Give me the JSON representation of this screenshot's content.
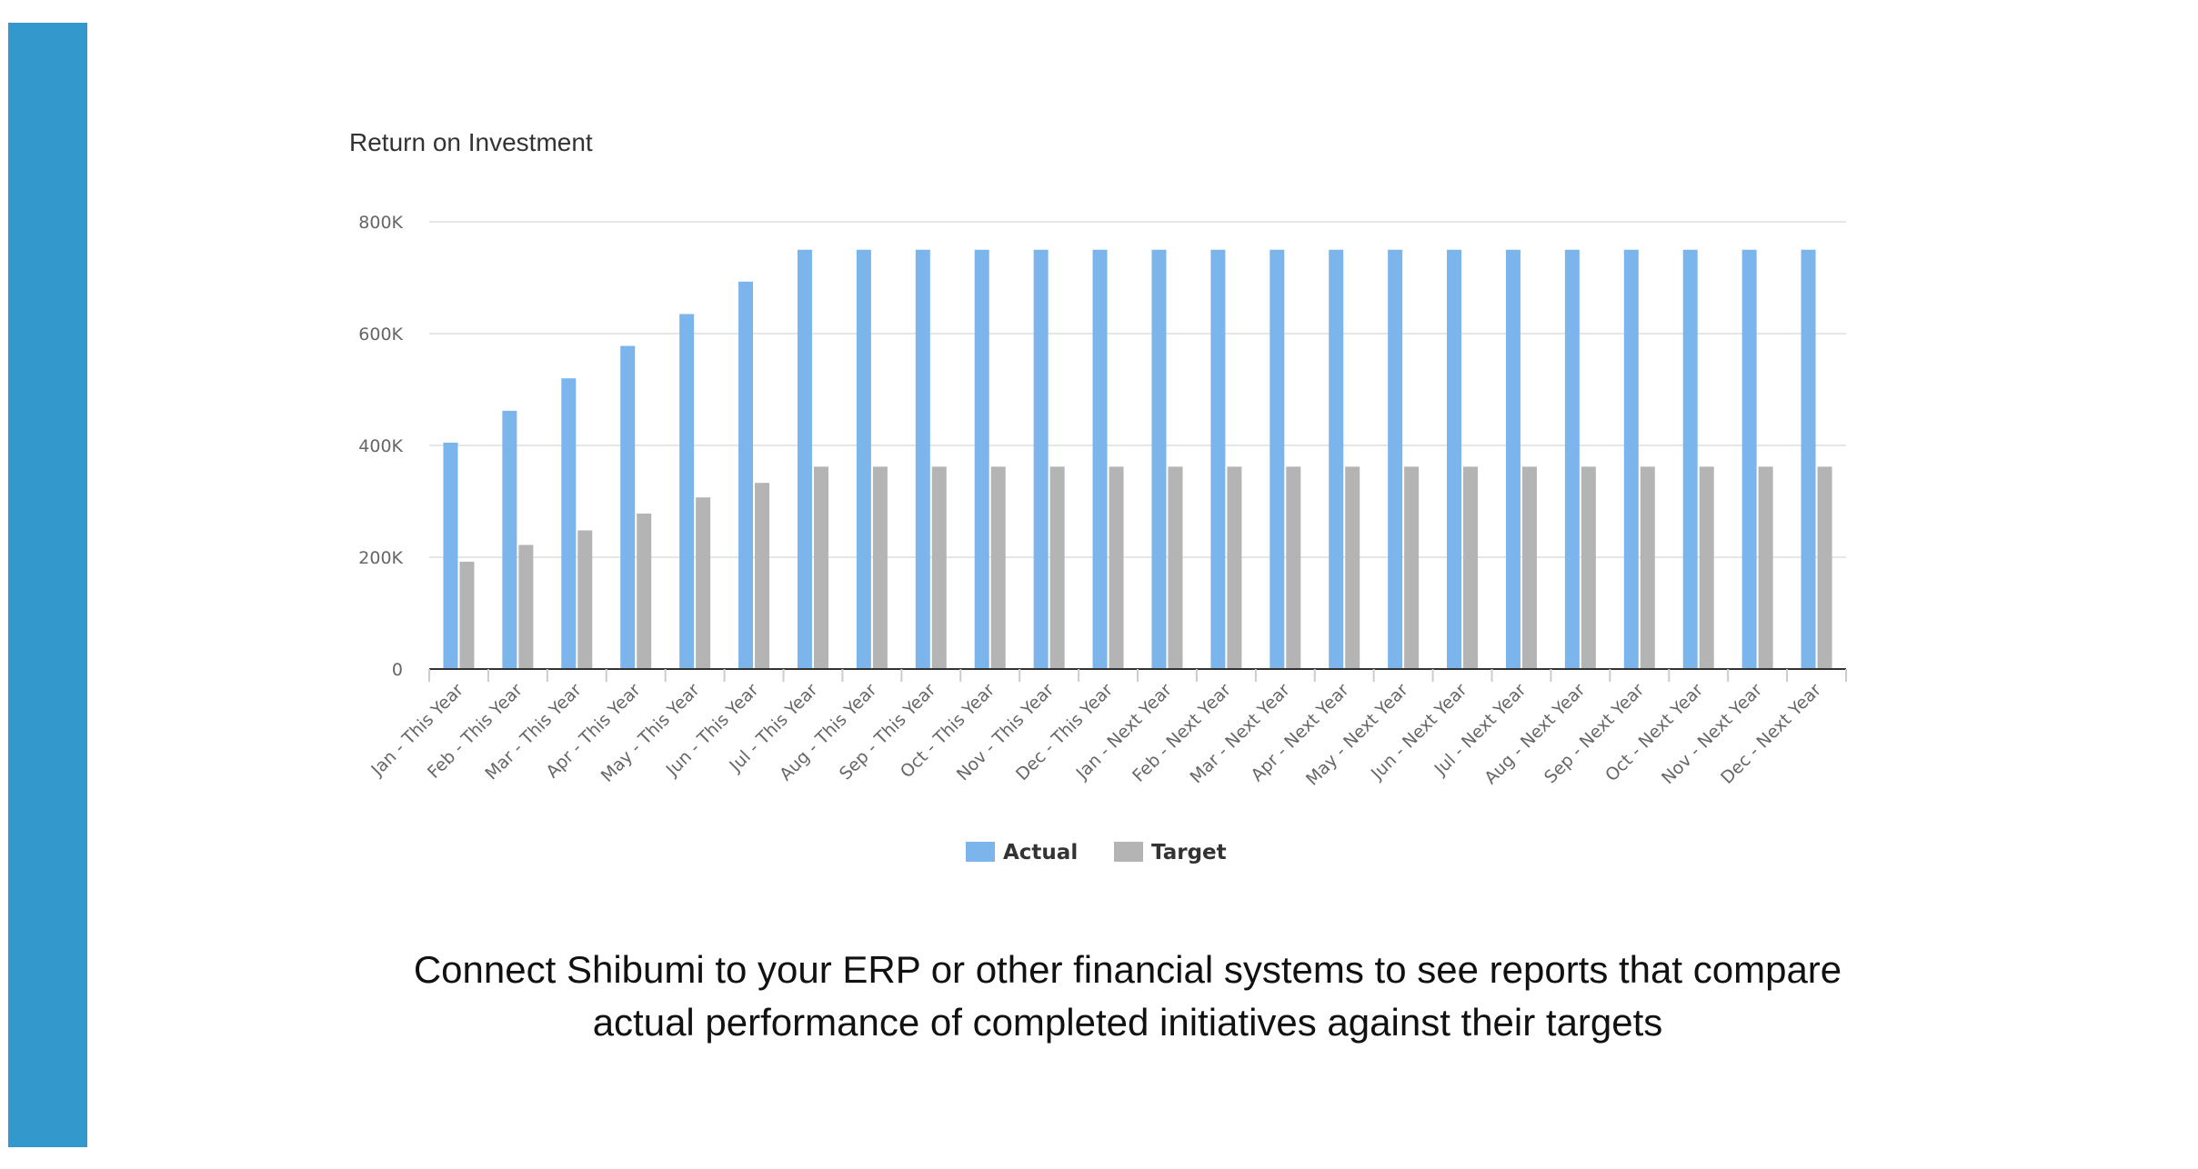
{
  "colors": {
    "accent": "#3399cc",
    "actual": "#7cb5ec",
    "target": "#b4b4b4",
    "grid": "#e6e6e6",
    "axis": "#333333"
  },
  "chart_data": {
    "type": "bar",
    "title": "Return on Investment",
    "ylim": [
      0,
      800000
    ],
    "yticks": [
      0,
      200000,
      400000,
      600000,
      800000
    ],
    "ytick_labels": [
      "0",
      "200K",
      "400K",
      "600K",
      "800K"
    ],
    "grid": true,
    "legend_position": "bottom-center",
    "categories": [
      "Jan - This Year",
      "Feb - This Year",
      "Mar - This Year",
      "Apr - This Year",
      "May - This Year",
      "Jun - This Year",
      "Jul - This Year",
      "Aug - This Year",
      "Sep - This Year",
      "Oct - This Year",
      "Nov - This Year",
      "Dec - This Year",
      "Jan - Next Year",
      "Feb - Next Year",
      "Mar - Next Year",
      "Apr - Next Year",
      "May - Next Year",
      "Jun - Next Year",
      "Jul - Next Year",
      "Aug - Next Year",
      "Sep - Next Year",
      "Oct - Next Year",
      "Nov - Next Year",
      "Dec - Next Year"
    ],
    "series": [
      {
        "name": "Actual",
        "values": [
          405000,
          462000,
          520000,
          578000,
          635000,
          693000,
          750000,
          750000,
          750000,
          750000,
          750000,
          750000,
          750000,
          750000,
          750000,
          750000,
          750000,
          750000,
          750000,
          750000,
          750000,
          750000,
          750000,
          750000
        ]
      },
      {
        "name": "Target",
        "values": [
          192000,
          222000,
          248000,
          278000,
          307000,
          333000,
          362000,
          362000,
          362000,
          362000,
          362000,
          362000,
          362000,
          362000,
          362000,
          362000,
          362000,
          362000,
          362000,
          362000,
          362000,
          362000,
          362000,
          362000
        ]
      }
    ]
  },
  "caption": {
    "line1": "Connect Shibumi to your ERP or other financial systems to see reports that compare",
    "line2": "actual performance of completed initiatives against their targets"
  }
}
